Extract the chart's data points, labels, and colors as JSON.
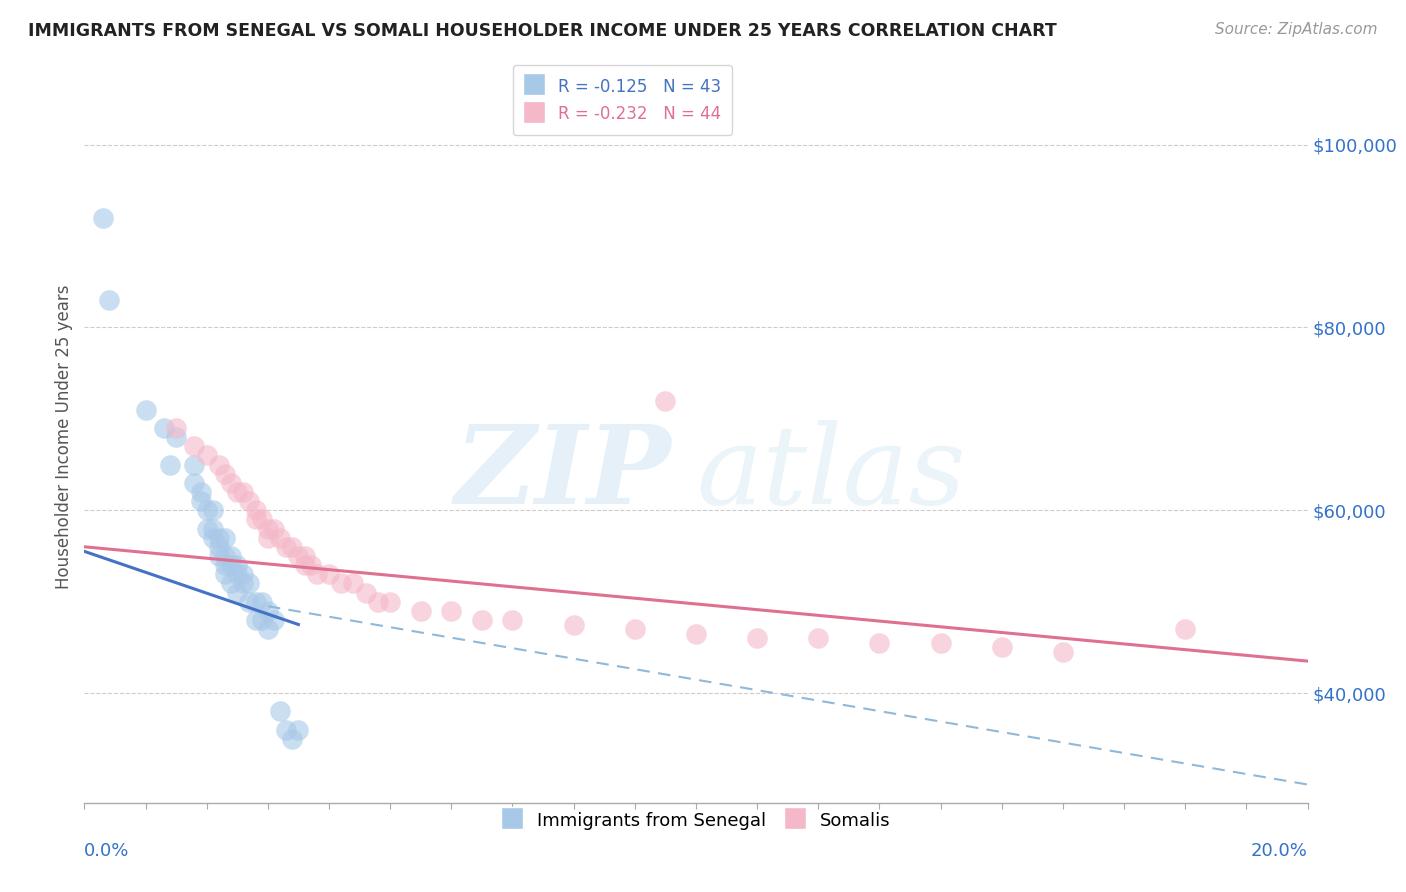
{
  "title": "IMMIGRANTS FROM SENEGAL VS SOMALI HOUSEHOLDER INCOME UNDER 25 YEARS CORRELATION CHART",
  "source": "Source: ZipAtlas.com",
  "ylabel": "Householder Income Under 25 years",
  "xlim": [
    0.0,
    0.2
  ],
  "ylim": [
    28000,
    108000
  ],
  "yticks": [
    40000,
    60000,
    80000,
    100000
  ],
  "ytick_labels": [
    "$40,000",
    "$60,000",
    "$80,000",
    "$100,000"
  ],
  "senegal_color": "#a8c8e8",
  "somali_color": "#f4b8c8",
  "senegal_line_color": "#4472c4",
  "somali_line_color": "#e07090",
  "dashed_line_color": "#90b8d8",
  "senegal_points": [
    [
      0.003,
      92000
    ],
    [
      0.004,
      83000
    ],
    [
      0.01,
      71000
    ],
    [
      0.013,
      69000
    ],
    [
      0.014,
      65000
    ],
    [
      0.015,
      68000
    ],
    [
      0.018,
      65000
    ],
    [
      0.018,
      63000
    ],
    [
      0.019,
      62000
    ],
    [
      0.019,
      61000
    ],
    [
      0.02,
      60000
    ],
    [
      0.02,
      58000
    ],
    [
      0.021,
      60000
    ],
    [
      0.021,
      58000
    ],
    [
      0.021,
      57000
    ],
    [
      0.022,
      57000
    ],
    [
      0.022,
      56000
    ],
    [
      0.022,
      55000
    ],
    [
      0.023,
      57000
    ],
    [
      0.023,
      55000
    ],
    [
      0.023,
      54000
    ],
    [
      0.023,
      53000
    ],
    [
      0.024,
      55000
    ],
    [
      0.024,
      54000
    ],
    [
      0.024,
      52000
    ],
    [
      0.025,
      54000
    ],
    [
      0.025,
      53000
    ],
    [
      0.025,
      51000
    ],
    [
      0.026,
      53000
    ],
    [
      0.026,
      52000
    ],
    [
      0.027,
      52000
    ],
    [
      0.027,
      50000
    ],
    [
      0.028,
      50000
    ],
    [
      0.028,
      48000
    ],
    [
      0.029,
      50000
    ],
    [
      0.029,
      48000
    ],
    [
      0.03,
      49000
    ],
    [
      0.03,
      47000
    ],
    [
      0.031,
      48000
    ],
    [
      0.032,
      38000
    ],
    [
      0.033,
      36000
    ],
    [
      0.034,
      35000
    ],
    [
      0.035,
      36000
    ]
  ],
  "somali_points": [
    [
      0.015,
      69000
    ],
    [
      0.018,
      67000
    ],
    [
      0.02,
      66000
    ],
    [
      0.022,
      65000
    ],
    [
      0.023,
      64000
    ],
    [
      0.024,
      63000
    ],
    [
      0.025,
      62000
    ],
    [
      0.026,
      62000
    ],
    [
      0.027,
      61000
    ],
    [
      0.028,
      60000
    ],
    [
      0.028,
      59000
    ],
    [
      0.029,
      59000
    ],
    [
      0.03,
      58000
    ],
    [
      0.03,
      57000
    ],
    [
      0.031,
      58000
    ],
    [
      0.032,
      57000
    ],
    [
      0.033,
      56000
    ],
    [
      0.034,
      56000
    ],
    [
      0.035,
      55000
    ],
    [
      0.036,
      55000
    ],
    [
      0.036,
      54000
    ],
    [
      0.037,
      54000
    ],
    [
      0.038,
      53000
    ],
    [
      0.04,
      53000
    ],
    [
      0.042,
      52000
    ],
    [
      0.044,
      52000
    ],
    [
      0.046,
      51000
    ],
    [
      0.048,
      50000
    ],
    [
      0.05,
      50000
    ],
    [
      0.055,
      49000
    ],
    [
      0.06,
      49000
    ],
    [
      0.065,
      48000
    ],
    [
      0.07,
      48000
    ],
    [
      0.08,
      47500
    ],
    [
      0.09,
      47000
    ],
    [
      0.095,
      72000
    ],
    [
      0.1,
      46500
    ],
    [
      0.11,
      46000
    ],
    [
      0.12,
      46000
    ],
    [
      0.13,
      45500
    ],
    [
      0.14,
      45500
    ],
    [
      0.15,
      45000
    ],
    [
      0.16,
      44500
    ],
    [
      0.18,
      47000
    ]
  ],
  "sen_line": [
    [
      0.0,
      55500
    ],
    [
      0.035,
      47500
    ]
  ],
  "som_line": [
    [
      0.0,
      56000
    ],
    [
      0.2,
      43500
    ]
  ],
  "dash_line": [
    [
      0.03,
      49500
    ],
    [
      0.2,
      30000
    ]
  ]
}
